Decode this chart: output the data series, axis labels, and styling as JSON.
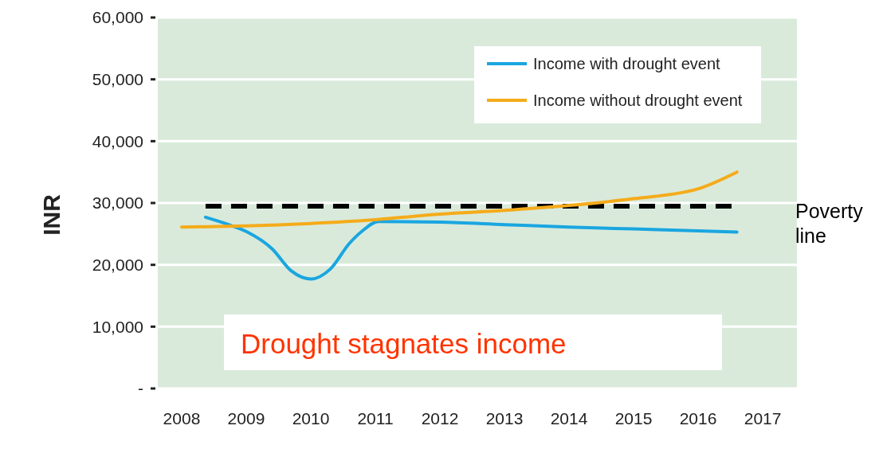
{
  "chart_data": {
    "type": "line",
    "ylabel": "INR",
    "xlim": [
      2007.63,
      2017.53
    ],
    "xticks": [
      2008,
      2009,
      2010,
      2011,
      2012,
      2013,
      2014,
      2015,
      2016,
      2017
    ],
    "ylim": [
      0,
      60000
    ],
    "yticks": [
      {
        "value": 0,
        "label": "-"
      },
      {
        "value": 10000,
        "label": "10,000"
      },
      {
        "value": 20000,
        "label": "20,000"
      },
      {
        "value": 30000,
        "label": "30,000"
      },
      {
        "value": 40000,
        "label": "40,000"
      },
      {
        "value": 50000,
        "label": "50,000"
      },
      {
        "value": 60000,
        "label": "60,000"
      }
    ],
    "grid": "y",
    "legend": "top right",
    "line_style": "solid",
    "marker": "none",
    "series": [
      {
        "name": "Income with drought event",
        "color": "#1aa6e0",
        "x": [
          2008.37,
          2008.7,
          2009,
          2009.4,
          2009.7,
          2010,
          2010.3,
          2010.6,
          2010.8,
          2011.05,
          2012,
          2013,
          2014,
          2015,
          2016,
          2016.6
        ],
        "values": [
          27700,
          26600,
          25400,
          22600,
          19000,
          17700,
          19300,
          23500,
          25500,
          27000,
          26900,
          26500,
          26100,
          25800,
          25500,
          25300
        ]
      },
      {
        "name": "Income without drought event",
        "color": "#f5ab1a",
        "x": [
          2008,
          2009,
          2010,
          2011,
          2012,
          2013,
          2014,
          2015,
          2016,
          2016.6
        ],
        "values": [
          26100,
          26300,
          26700,
          27300,
          28200,
          28800,
          29600,
          30700,
          32300,
          35000
        ]
      }
    ],
    "ref_lines": [
      {
        "axis": "y",
        "value": 29500,
        "label": "Poverty line",
        "color": "#000000",
        "line_style": "dashed"
      }
    ],
    "annotations": [
      "Drought stagnates income"
    ]
  }
}
